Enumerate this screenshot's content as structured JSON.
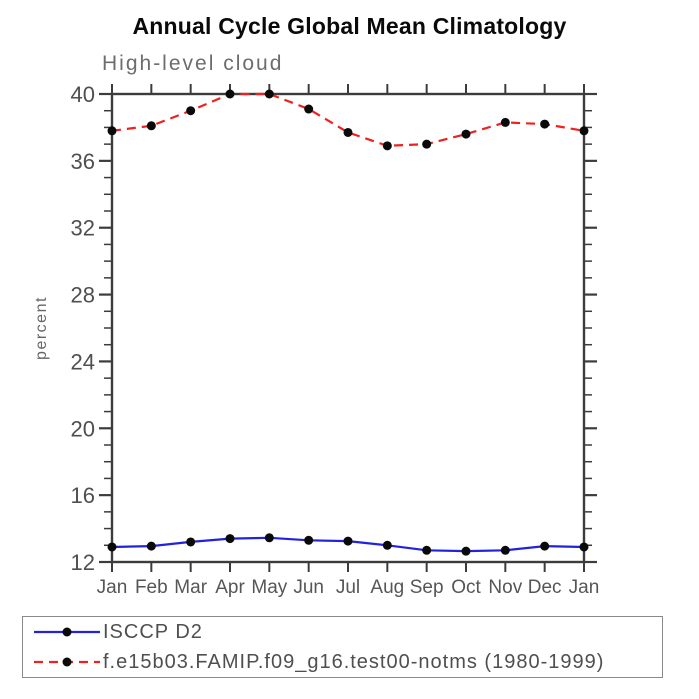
{
  "title": "Annual Cycle Global Mean Climatology",
  "chart_data": {
    "type": "line",
    "title": "Annual Cycle Global Mean Climatology",
    "subtitle": "High-level cloud",
    "ylabel": "percent",
    "xlabel": "",
    "ylim": [
      12,
      40
    ],
    "yticks": [
      12,
      16,
      20,
      24,
      28,
      32,
      36,
      40
    ],
    "ytick_minor_step": 1,
    "grid": false,
    "legend_position": "bottom",
    "categories": [
      "Jan",
      "Feb",
      "Mar",
      "Apr",
      "May",
      "Jun",
      "Jul",
      "Aug",
      "Sep",
      "Oct",
      "Nov",
      "Dec",
      "Jan"
    ],
    "series": [
      {
        "name": "ISCCP D2",
        "color": "#2222dd",
        "line_style": "solid",
        "marker": "filled-circle",
        "marker_color": "#0a0a0a",
        "values": [
          12.9,
          12.95,
          13.2,
          13.4,
          13.45,
          13.3,
          13.25,
          13.0,
          12.7,
          12.65,
          12.7,
          12.95,
          12.9
        ]
      },
      {
        "name": "f.e15b03.FAMIP.f09_g16.test00-notms (1980-1999)",
        "color": "#ee2020",
        "line_style": "dashed",
        "marker": "filled-circle",
        "marker_color": "#0a0a0a",
        "values": [
          37.8,
          38.1,
          39.0,
          40.0,
          40.0,
          39.1,
          37.7,
          36.9,
          37.0,
          37.6,
          38.3,
          38.2,
          37.8
        ]
      }
    ]
  },
  "colors": {
    "background": "#ffffff",
    "title_text": "#0a0a0a",
    "subtitle_text": "#6d6d6d",
    "frame": "#3c3c3c",
    "tick_label": "#4f4f4f",
    "month_label": "#565656",
    "axis_title": "#666666",
    "legend_border": "#8a8a8a",
    "legend_text": "#4f4f4f"
  }
}
